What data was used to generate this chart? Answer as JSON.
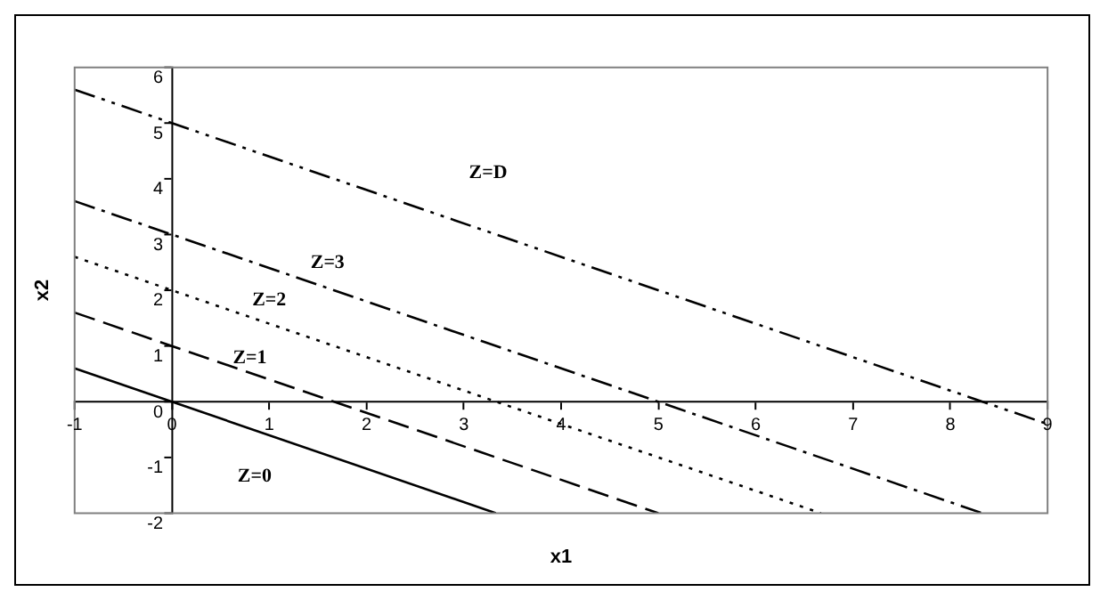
{
  "chart_data": {
    "type": "line",
    "xlabel": "x1",
    "ylabel": "x2",
    "xlim": [
      -1,
      9
    ],
    "ylim": [
      -2,
      6
    ],
    "xticks": [
      -1,
      0,
      1,
      2,
      3,
      4,
      5,
      6,
      7,
      8,
      9
    ],
    "yticks": [
      -2,
      -1,
      0,
      1,
      2,
      3,
      4,
      5,
      6
    ],
    "grid": false,
    "legend": false,
    "marker": "none",
    "series": [
      {
        "name": "Z=0",
        "color": "#000000",
        "line_style": "solid",
        "x": [
          -1,
          3.33
        ],
        "values": [
          0.6,
          -2
        ]
      },
      {
        "name": "Z=1",
        "color": "#000000",
        "line_style": "dashed",
        "x": [
          -1,
          5
        ],
        "values": [
          1.6,
          -2
        ]
      },
      {
        "name": "Z=2",
        "color": "#000000",
        "line_style": "dotted",
        "x": [
          -1,
          6.67
        ],
        "values": [
          2.6,
          -2
        ]
      },
      {
        "name": "Z=3",
        "color": "#000000",
        "line_style": "dashed",
        "x": [
          -1,
          8.33
        ],
        "values": [
          3.6,
          -2
        ]
      },
      {
        "name": "Z=D",
        "color": "#000000",
        "line_style": "dashed",
        "x": [
          -1,
          9
        ],
        "values": [
          5.6,
          -0.4
        ]
      }
    ]
  }
}
